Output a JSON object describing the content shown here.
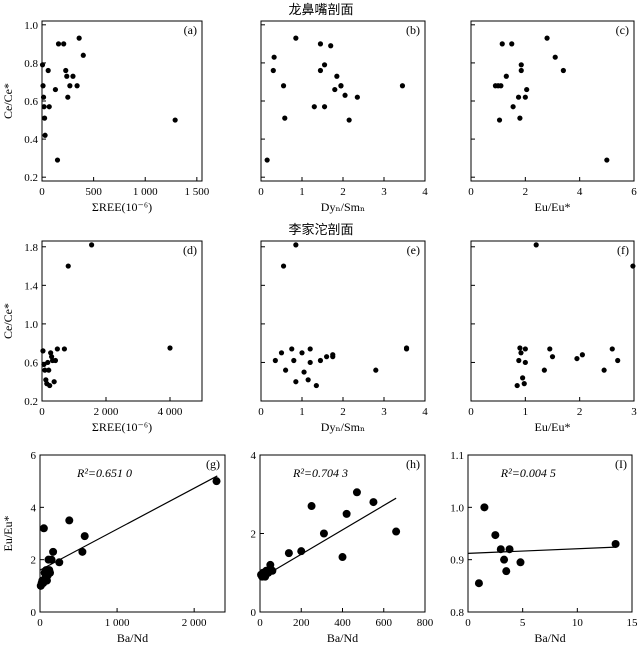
{
  "section_titles": {
    "top": "龙鼻嘴剖面",
    "middle": "李家沱剖面"
  },
  "chart_data": [
    {
      "id": "a",
      "panel_label": "(a)",
      "type": "scatter",
      "xlabel": "ΣREE(10⁻⁶)",
      "ylabel": "Ce/Ce*",
      "xlim": [
        0,
        1550
      ],
      "ylim": [
        0.18,
        1.02
      ],
      "xticks": [
        0,
        500,
        1000,
        1500
      ],
      "xtick_labels": [
        "0",
        "500",
        "1 000",
        "1 500"
      ],
      "yticks": [
        0.2,
        0.4,
        0.6,
        0.8,
        1.0
      ],
      "ytick_labels": [
        "0.2",
        "0.4",
        "0.6",
        "0.8",
        "1.0"
      ],
      "points": [
        [
          5,
          0.79
        ],
        [
          10,
          0.68
        ],
        [
          15,
          0.62
        ],
        [
          20,
          0.57
        ],
        [
          25,
          0.51
        ],
        [
          30,
          0.42
        ],
        [
          60,
          0.76
        ],
        [
          70,
          0.57
        ],
        [
          130,
          0.66
        ],
        [
          150,
          0.29
        ],
        [
          160,
          0.9
        ],
        [
          210,
          0.9
        ],
        [
          230,
          0.76
        ],
        [
          240,
          0.73
        ],
        [
          250,
          0.62
        ],
        [
          270,
          0.68
        ],
        [
          300,
          0.73
        ],
        [
          340,
          0.68
        ],
        [
          360,
          0.93
        ],
        [
          400,
          0.84
        ],
        [
          1290,
          0.5
        ]
      ]
    },
    {
      "id": "b",
      "panel_label": "(b)",
      "type": "scatter",
      "xlabel": "Dyₙ/Smₙ",
      "ylabel": "",
      "xlim": [
        0,
        4
      ],
      "ylim": [
        0.18,
        1.02
      ],
      "xticks": [
        0,
        1,
        2,
        3,
        4
      ],
      "xtick_labels": [
        "0",
        "1",
        "2",
        "3",
        "4"
      ],
      "yticks": [
        0.2,
        0.4,
        0.6,
        0.8,
        1.0
      ],
      "ytick_labels": [
        "",
        "",
        "",
        "",
        ""
      ],
      "points": [
        [
          0.15,
          0.29
        ],
        [
          0.3,
          0.76
        ],
        [
          0.32,
          0.83
        ],
        [
          0.55,
          0.68
        ],
        [
          0.58,
          0.51
        ],
        [
          0.85,
          0.93
        ],
        [
          1.3,
          0.57
        ],
        [
          1.45,
          0.9
        ],
        [
          1.45,
          0.76
        ],
        [
          1.55,
          0.79
        ],
        [
          1.55,
          0.57
        ],
        [
          1.7,
          0.89
        ],
        [
          1.8,
          0.66
        ],
        [
          1.85,
          0.73
        ],
        [
          1.95,
          0.68
        ],
        [
          1.95,
          0.68
        ],
        [
          2.05,
          0.63
        ],
        [
          2.15,
          0.5
        ],
        [
          2.35,
          0.62
        ],
        [
          3.45,
          0.68
        ]
      ]
    },
    {
      "id": "c",
      "panel_label": "(c)",
      "type": "scatter",
      "xlabel": "Eu/Eu*",
      "ylabel": "",
      "xlim": [
        0,
        6
      ],
      "ylim": [
        0.18,
        1.02
      ],
      "xticks": [
        0,
        2,
        4,
        6
      ],
      "xtick_labels": [
        "0",
        "2",
        "4",
        "6"
      ],
      "yticks": [
        0.2,
        0.4,
        0.6,
        0.8,
        1.0
      ],
      "ytick_labels": [
        "",
        "",
        "",
        "",
        ""
      ],
      "points": [
        [
          0.9,
          0.68
        ],
        [
          1.0,
          0.68
        ],
        [
          1.05,
          0.5
        ],
        [
          1.1,
          0.68
        ],
        [
          1.15,
          0.9
        ],
        [
          1.3,
          0.73
        ],
        [
          1.5,
          0.9
        ],
        [
          1.55,
          0.57
        ],
        [
          1.75,
          0.62
        ],
        [
          1.8,
          0.51
        ],
        [
          1.85,
          0.76
        ],
        [
          1.85,
          0.79
        ],
        [
          2.0,
          0.62
        ],
        [
          2.05,
          0.66
        ],
        [
          2.8,
          0.93
        ],
        [
          3.1,
          0.83
        ],
        [
          3.4,
          0.76
        ],
        [
          5.0,
          0.29
        ]
      ]
    },
    {
      "id": "d",
      "panel_label": "(d)",
      "type": "scatter",
      "xlabel": "ΣREE(10⁻⁶)",
      "ylabel": "Ce/Ce*",
      "xlim": [
        0,
        5000
      ],
      "ylim": [
        0.2,
        1.86
      ],
      "xticks": [
        0,
        2000,
        4000
      ],
      "xtick_labels": [
        "0",
        "2 000",
        "4 000"
      ],
      "yticks": [
        0.2,
        0.6,
        1.0,
        1.4,
        1.8
      ],
      "ytick_labels": [
        "0.2",
        "0.6",
        "1.0",
        "1.4",
        "1.8"
      ],
      "points": [
        [
          30,
          0.72
        ],
        [
          60,
          0.58
        ],
        [
          90,
          0.52
        ],
        [
          120,
          0.42
        ],
        [
          150,
          0.38
        ],
        [
          180,
          0.6
        ],
        [
          210,
          0.52
        ],
        [
          240,
          0.36
        ],
        [
          270,
          0.7
        ],
        [
          300,
          0.66
        ],
        [
          330,
          0.62
        ],
        [
          380,
          0.4
        ],
        [
          420,
          0.62
        ],
        [
          480,
          0.74
        ],
        [
          700,
          0.74
        ],
        [
          820,
          1.6
        ],
        [
          1550,
          1.82
        ],
        [
          4000,
          0.75
        ]
      ]
    },
    {
      "id": "e",
      "panel_label": "(e)",
      "type": "scatter",
      "xlabel": "Dyₙ/Smₙ",
      "ylabel": "",
      "xlim": [
        0,
        4
      ],
      "ylim": [
        0.2,
        1.86
      ],
      "xticks": [
        0,
        1,
        2,
        3,
        4
      ],
      "xtick_labels": [
        "0",
        "1",
        "2",
        "3",
        "4"
      ],
      "yticks": [
        0.2,
        0.6,
        1.0,
        1.4,
        1.8
      ],
      "ytick_labels": [
        "",
        "",
        "",
        "",
        ""
      ],
      "points": [
        [
          0.35,
          0.62
        ],
        [
          0.5,
          0.7
        ],
        [
          0.55,
          1.6
        ],
        [
          0.6,
          0.52
        ],
        [
          0.75,
          0.74
        ],
        [
          0.8,
          0.62
        ],
        [
          0.85,
          0.4
        ],
        [
          0.85,
          1.82
        ],
        [
          1.0,
          0.7
        ],
        [
          1.05,
          0.5
        ],
        [
          1.15,
          0.42
        ],
        [
          1.2,
          0.6
        ],
        [
          1.2,
          0.74
        ],
        [
          1.35,
          0.36
        ],
        [
          1.45,
          0.62
        ],
        [
          1.6,
          0.66
        ],
        [
          1.75,
          0.68
        ],
        [
          1.75,
          0.66
        ],
        [
          2.8,
          0.52
        ],
        [
          3.55,
          0.74
        ],
        [
          3.55,
          0.75
        ]
      ]
    },
    {
      "id": "f",
      "panel_label": "(f)",
      "type": "scatter",
      "xlabel": "Eu/Eu*",
      "ylabel": "",
      "xlim": [
        0,
        3
      ],
      "ylim": [
        0.2,
        1.86
      ],
      "xticks": [
        0,
        1,
        2,
        3
      ],
      "xtick_labels": [
        "0",
        "1",
        "2",
        "3"
      ],
      "yticks": [
        0.2,
        0.6,
        1.0,
        1.4,
        1.8
      ],
      "ytick_labels": [
        "",
        "",
        "",
        "",
        ""
      ],
      "points": [
        [
          0.85,
          0.36
        ],
        [
          0.88,
          0.62
        ],
        [
          0.9,
          0.75
        ],
        [
          0.92,
          0.7
        ],
        [
          0.95,
          0.44
        ],
        [
          0.98,
          0.38
        ],
        [
          1.0,
          0.6
        ],
        [
          1.0,
          0.74
        ],
        [
          1.2,
          1.82
        ],
        [
          1.35,
          0.52
        ],
        [
          1.45,
          0.74
        ],
        [
          1.5,
          0.66
        ],
        [
          1.95,
          0.64
        ],
        [
          2.05,
          0.68
        ],
        [
          2.45,
          0.52
        ],
        [
          2.6,
          0.74
        ],
        [
          2.7,
          0.62
        ],
        [
          2.98,
          1.6
        ]
      ]
    },
    {
      "id": "g",
      "panel_label": "(g)",
      "type": "scatter",
      "xlabel": "Ba/Nd",
      "ylabel": "Eu/Eu*",
      "xlim": [
        0,
        2400
      ],
      "ylim": [
        0,
        6
      ],
      "xticks": [
        0,
        1000,
        2000
      ],
      "xtick_labels": [
        "0",
        "1 000",
        "2 000"
      ],
      "yticks": [
        0,
        2,
        4,
        6
      ],
      "ytick_labels": [
        "0",
        "2",
        "4",
        "6"
      ],
      "r2_label": "R²=0.651 0",
      "fit_line": [
        [
          0,
          1.6
        ],
        [
          2300,
          5.2
        ]
      ],
      "points": [
        [
          10,
          1.0
        ],
        [
          20,
          1.1
        ],
        [
          30,
          1.2
        ],
        [
          40,
          1.1
        ],
        [
          50,
          3.2
        ],
        [
          60,
          1.5
        ],
        [
          70,
          1.3
        ],
        [
          80,
          1.6
        ],
        [
          90,
          1.2
        ],
        [
          100,
          1.4
        ],
        [
          110,
          2.0
        ],
        [
          120,
          1.6
        ],
        [
          130,
          1.5
        ],
        [
          150,
          2.0
        ],
        [
          170,
          2.3
        ],
        [
          250,
          1.9
        ],
        [
          380,
          3.5
        ],
        [
          550,
          2.3
        ],
        [
          580,
          2.9
        ],
        [
          2290,
          5.0
        ]
      ]
    },
    {
      "id": "h",
      "panel_label": "(h)",
      "type": "scatter",
      "xlabel": "Ba/Nd",
      "ylabel": "",
      "xlim": [
        0,
        800
      ],
      "ylim": [
        0,
        4
      ],
      "xticks": [
        0,
        200,
        400,
        600,
        800
      ],
      "xtick_labels": [
        "0",
        "200",
        "400",
        "600",
        "800"
      ],
      "yticks": [
        0,
        2,
        4
      ],
      "ytick_labels": [
        "0",
        "2",
        "4"
      ],
      "r2_label": "R²=0.704 3",
      "fit_line": [
        [
          0,
          0.85
        ],
        [
          660,
          2.9
        ]
      ],
      "points": [
        [
          5,
          0.95
        ],
        [
          10,
          0.9
        ],
        [
          15,
          1.0
        ],
        [
          20,
          0.95
        ],
        [
          25,
          0.9
        ],
        [
          30,
          1.05
        ],
        [
          40,
          1.0
        ],
        [
          50,
          1.2
        ],
        [
          60,
          1.05
        ],
        [
          140,
          1.5
        ],
        [
          200,
          1.55
        ],
        [
          250,
          2.7
        ],
        [
          310,
          2.0
        ],
        [
          400,
          1.4
        ],
        [
          420,
          2.5
        ],
        [
          470,
          3.05
        ],
        [
          550,
          2.8
        ],
        [
          660,
          2.05
        ]
      ]
    },
    {
      "id": "i",
      "panel_label": "(I)",
      "type": "scatter",
      "xlabel": "Ba/Nd",
      "ylabel": "",
      "xlim": [
        0,
        15
      ],
      "ylim": [
        0.8,
        1.1
      ],
      "xticks": [
        0,
        5,
        10,
        15
      ],
      "xtick_labels": [
        "0",
        "5",
        "10",
        "15"
      ],
      "yticks": [
        0.8,
        0.9,
        1.0,
        1.1
      ],
      "ytick_labels": [
        "0.8",
        "0.9",
        "1.0",
        "1.1"
      ],
      "r2_label": "R²=0.004 5",
      "fit_line": [
        [
          0,
          0.912
        ],
        [
          13.5,
          0.924
        ]
      ],
      "points": [
        [
          1.0,
          0.855
        ],
        [
          1.5,
          1.0
        ],
        [
          2.5,
          0.947
        ],
        [
          3.0,
          0.92
        ],
        [
          3.3,
          0.9
        ],
        [
          3.5,
          0.878
        ],
        [
          3.8,
          0.92
        ],
        [
          4.8,
          0.895
        ],
        [
          13.5,
          0.93
        ]
      ]
    }
  ]
}
